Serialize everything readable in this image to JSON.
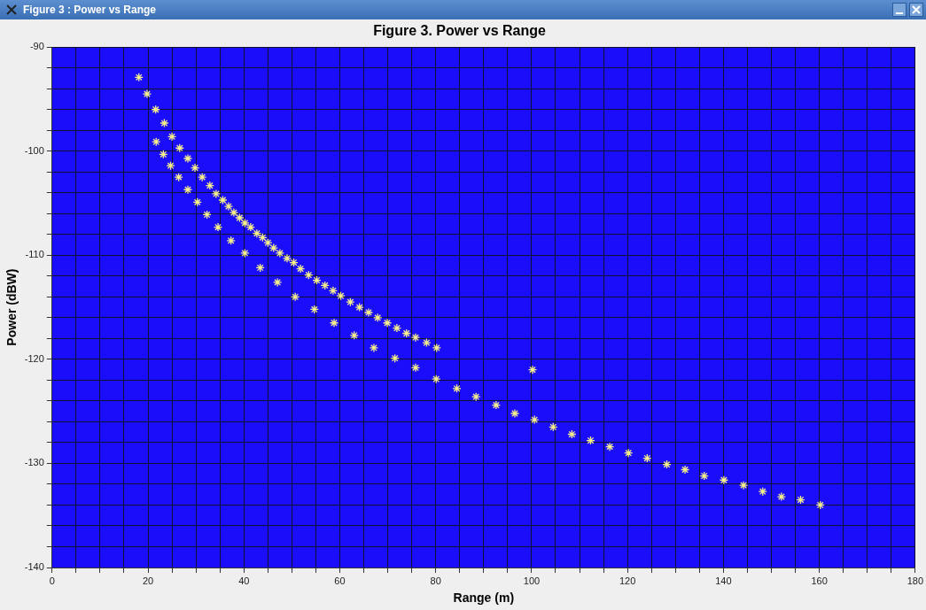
{
  "chart_data": {
    "type": "scatter",
    "title": "Figure 3. Power vs Range",
    "xlabel": "Range (m)",
    "ylabel": "Power (dBW)",
    "annotations": [
      "Figure 3 : Power vs Range"
    ],
    "series": [
      {
        "color": "#f6f08a",
        "x": [
          18.1,
          19.8,
          21.6,
          23.4,
          25.0,
          26.6,
          28.3,
          29.8,
          31.3,
          32.9,
          34.2,
          35.6,
          36.8,
          37.9,
          39.1,
          40.2,
          41.4,
          42.7,
          43.9,
          45.0,
          46.2,
          47.5,
          49.0,
          50.4,
          51.8,
          53.5,
          55.2,
          56.9,
          58.6,
          60.2,
          62.2,
          64.1,
          66.0,
          67.9,
          69.9,
          71.9,
          73.9,
          75.8,
          78.1,
          80.2,
          21.7,
          23.2,
          24.7,
          26.4,
          28.3,
          30.3,
          32.3,
          34.6,
          37.3,
          40.2,
          43.4,
          47.0,
          50.7,
          54.7,
          58.8,
          63.0,
          67.1,
          71.5,
          75.8,
          80.1,
          84.4,
          88.4,
          92.6,
          96.5,
          100.6,
          104.5,
          108.4,
          112.3,
          116.3,
          120.2,
          124.1,
          128.2,
          132.0,
          136.0,
          140.1,
          144.2,
          148.2,
          152.1,
          156.1,
          160.2,
          100.2
        ],
        "values": [
          -92.9,
          -94.5,
          -96.0,
          -97.3,
          -98.6,
          -99.7,
          -100.7,
          -101.6,
          -102.5,
          -103.3,
          -104.1,
          -104.7,
          -105.3,
          -105.9,
          -106.4,
          -106.9,
          -107.3,
          -107.9,
          -108.3,
          -108.8,
          -109.3,
          -109.8,
          -110.3,
          -110.7,
          -111.3,
          -111.9,
          -112.4,
          -112.9,
          -113.4,
          -113.9,
          -114.5,
          -115.0,
          -115.5,
          -116.0,
          -116.5,
          -117.0,
          -117.5,
          -117.9,
          -118.4,
          -118.9,
          -99.1,
          -100.3,
          -101.4,
          -102.5,
          -103.7,
          -104.9,
          -106.1,
          -107.3,
          -108.6,
          -109.8,
          -111.2,
          -112.6,
          -114.0,
          -115.2,
          -116.5,
          -117.7,
          -118.9,
          -119.9,
          -120.8,
          -121.9,
          -122.8,
          -123.6,
          -124.4,
          -125.2,
          -125.8,
          -126.5,
          -127.2,
          -127.8,
          -128.4,
          -129.0,
          -129.5,
          -130.1,
          -130.6,
          -131.2,
          -131.6,
          -132.1,
          -132.7,
          -133.2,
          -133.5,
          -134.0,
          -121.0
        ]
      }
    ],
    "xlim": [
      0,
      180
    ],
    "xticks": [
      0,
      {
        "value": 5,
        "label": null
      },
      {
        "value": 10,
        "label": null
      },
      {
        "value": 15,
        "label": null
      },
      20,
      {
        "value": 25,
        "label": null
      },
      {
        "value": 30,
        "label": null
      },
      {
        "value": 35,
        "label": null
      },
      40,
      {
        "value": 45,
        "label": null
      },
      {
        "value": 50,
        "label": null
      },
      {
        "value": 55,
        "label": null
      },
      60,
      {
        "value": 65,
        "label": null
      },
      {
        "value": 70,
        "label": null
      },
      {
        "value": 75,
        "label": null
      },
      80,
      {
        "value": 85,
        "label": null
      },
      {
        "value": 90,
        "label": null
      },
      {
        "value": 95,
        "label": null
      },
      100,
      {
        "value": 105,
        "label": null
      },
      {
        "value": 110,
        "label": null
      },
      {
        "value": 115,
        "label": null
      },
      120,
      {
        "value": 125,
        "label": null
      },
      {
        "value": 130,
        "label": null
      },
      {
        "value": 135,
        "label": null
      },
      140,
      {
        "value": 145,
        "label": null
      },
      {
        "value": 150,
        "label": null
      },
      {
        "value": 155,
        "label": null
      },
      160,
      {
        "value": 165,
        "label": null
      },
      {
        "value": 170,
        "label": null
      },
      {
        "value": 175,
        "label": null
      },
      180
    ],
    "ylim": [
      -140,
      -90
    ],
    "yticks": [
      -140,
      {
        "value": -138,
        "label": null
      },
      {
        "value": -136,
        "label": null
      },
      {
        "value": -134,
        "label": null
      },
      {
        "value": -132,
        "label": null
      },
      -130,
      {
        "value": -128,
        "label": null
      },
      {
        "value": -126,
        "label": null
      },
      {
        "value": -124,
        "label": null
      },
      {
        "value": -122,
        "label": null
      },
      -120,
      {
        "value": -118,
        "label": null
      },
      {
        "value": -116,
        "label": null
      },
      {
        "value": -114,
        "label": null
      },
      {
        "value": -112,
        "label": null
      },
      -110,
      {
        "value": -108,
        "label": null
      },
      {
        "value": -106,
        "label": null
      },
      {
        "value": -104,
        "label": null
      },
      {
        "value": -102,
        "label": null
      },
      -100,
      {
        "value": -98,
        "label": null
      },
      {
        "value": -96,
        "label": null
      },
      {
        "value": -94,
        "label": null
      },
      {
        "value": -92,
        "label": null
      },
      -90
    ],
    "grid": true,
    "marker": "cross"
  }
}
